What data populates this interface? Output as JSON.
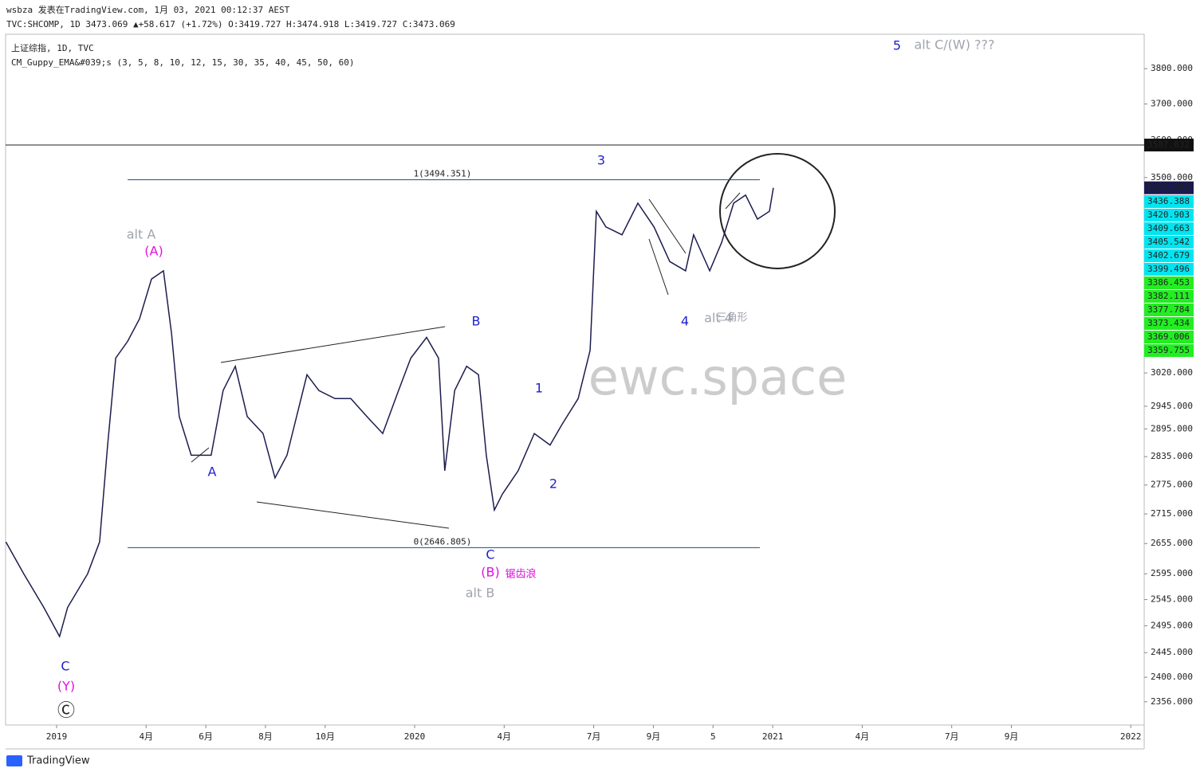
{
  "header": {
    "publisher": "wsbza 发表在TradingView.com, 1月 03, 2021 00:12:37 AEST",
    "quote": "TVC:SHCOMP, 1D 3473.069 ▲+58.617 (+1.72%) O:3419.727 H:3474.918 L:3419.727 C:3473.069",
    "symbol": "上证综指, 1D, TVC",
    "indicator": "CM_Guppy_EMA&#039;s (3, 5, 8, 10, 12, 15, 30, 35, 40, 45, 50, 60)"
  },
  "guppy_tags": [
    3436.388,
    3420.903,
    3409.663,
    3405.542,
    3402.679,
    3399.496,
    3386.453,
    3382.111,
    3377.784,
    3373.434,
    3369.006,
    3359.755
  ],
  "annotations": [
    "5",
    "alt C/(W) ???",
    "3",
    "alt A",
    "(A)",
    "A",
    "B",
    "1",
    "2",
    "4",
    "alt 4",
    "三角形",
    "C",
    "(B)",
    "锯齿浪",
    "alt B",
    "C",
    "(Y)",
    "Ⓒ"
  ],
  "watermark": "ewc.space",
  "brand": "TradingView",
  "chart_data": {
    "type": "line",
    "log_scale": true,
    "color": "#1c1c4e",
    "x": [
      -1.7,
      -1.1,
      -0.43,
      0.1,
      0.37,
      1.04,
      1.44,
      1.71,
      1.98,
      2.38,
      2.78,
      3.18,
      3.58,
      3.85,
      4.11,
      4.51,
      5.18,
      5.58,
      5.99,
      6.39,
      6.92,
      7.32,
      7.72,
      8.39,
      8.79,
      9.33,
      9.86,
      10.4,
      10.93,
      11.46,
      11.87,
      12.4,
      12.8,
      13.01,
      13.34,
      13.74,
      14.14,
      14.4,
      14.67,
      14.94,
      15.47,
      16.01,
      16.54,
      16.94,
      17.48,
      17.88,
      18.09,
      18.41,
      18.95,
      19.48,
      20.02,
      20.55,
      21.08,
      21.35,
      21.89,
      22.29,
      22.69,
      23.09,
      23.49,
      23.89,
      24.02
    ],
    "values": [
      2658,
      2595,
      2530,
      2475,
      2530,
      2595,
      2658,
      2860,
      3054,
      3093,
      3146,
      3242,
      3262,
      3112,
      2922,
      2838,
      2838,
      2980,
      3035,
      2922,
      2885,
      2790,
      2838,
      3016,
      2980,
      2962,
      2962,
      2922,
      2885,
      2980,
      3054,
      3102,
      3054,
      2805,
      2980,
      3035,
      3016,
      2838,
      2723,
      2756,
      2805,
      2885,
      2860,
      2905,
      2962,
      3072,
      3412,
      3372,
      3352,
      3433,
      3372,
      3285,
      3262,
      3352,
      3262,
      3333,
      3433,
      3454,
      3392,
      3412,
      3473.069
    ],
    "xlim": [
      -1.71,
      36.45
    ],
    "ylim": [
      2315,
      3900
    ],
    "xticks": [
      {
        "value": 0,
        "label": "2019"
      },
      {
        "value": 3,
        "label": "4月"
      },
      {
        "value": 5,
        "label": "6月"
      },
      {
        "value": 7,
        "label": "8月"
      },
      {
        "value": 9,
        "label": "10月"
      },
      {
        "value": 12,
        "label": "2020"
      },
      {
        "value": 15,
        "label": "4月"
      },
      {
        "value": 18,
        "label": "7月"
      },
      {
        "value": 20,
        "label": "9月"
      },
      {
        "value": 22,
        "label": "5"
      },
      {
        "value": 24,
        "label": "2021"
      },
      {
        "value": 27,
        "label": "4月"
      },
      {
        "value": 30,
        "label": "7月"
      },
      {
        "value": 32,
        "label": "9月"
      },
      {
        "value": 36,
        "label": "2022"
      }
    ],
    "yticks": [
      {
        "value": 3800,
        "label": "3800.000"
      },
      {
        "value": 3700,
        "label": "3700.000"
      },
      {
        "value": 3600,
        "label": "3600.000"
      },
      {
        "value": 3500,
        "label": "3500.000"
      },
      {
        "value": 3020,
        "label": "3020.000"
      },
      {
        "value": 2945,
        "label": "2945.000"
      },
      {
        "value": 2895,
        "label": "2895.000"
      },
      {
        "value": 2835,
        "label": "2835.000"
      },
      {
        "value": 2775,
        "label": "2775.000"
      },
      {
        "value": 2715,
        "label": "2715.000"
      },
      {
        "value": 2655,
        "label": "2655.000"
      },
      {
        "value": 2595,
        "label": "2595.000"
      },
      {
        "value": 2545,
        "label": "2545.000"
      },
      {
        "value": 2495,
        "label": "2495.000"
      },
      {
        "value": 2445,
        "label": "2445.000"
      },
      {
        "value": 2400,
        "label": "2400.000"
      },
      {
        "value": 2356,
        "label": "2356.000"
      }
    ],
    "fib": [
      {
        "value": 3494.351,
        "label": "1(3494.351)"
      },
      {
        "value": 2646.805,
        "label": "0(2646.805)"
      }
    ],
    "hline": 3587.032,
    "last": 3473.069
  }
}
